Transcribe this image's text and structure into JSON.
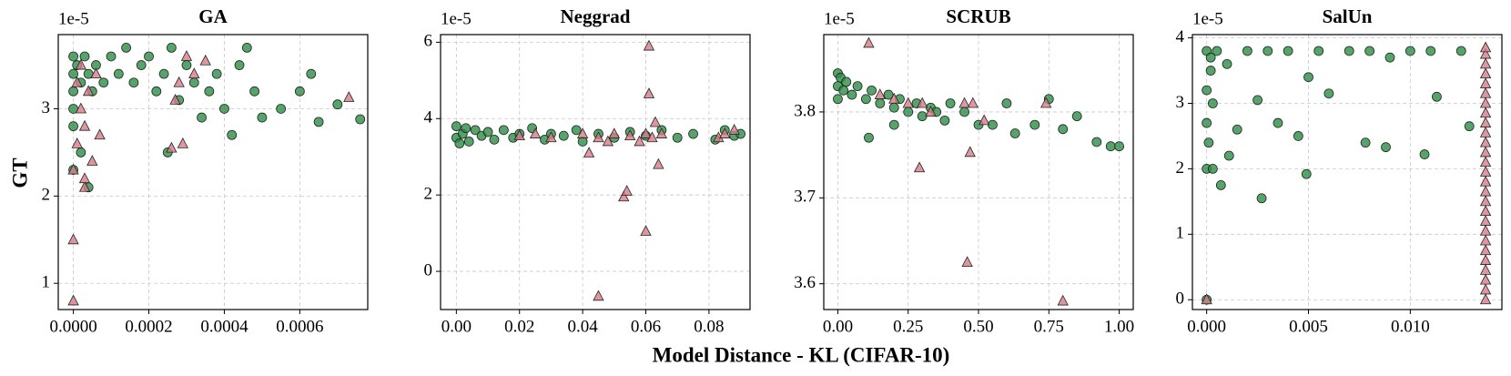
{
  "figure": {
    "xlabel": "Model Distance - KL (CIFAR-10)",
    "ylabel": "GT"
  },
  "chart_data": [
    {
      "type": "scatter",
      "title": "GA",
      "offset_text": "1e-5",
      "grid": true,
      "xlim": [
        -4e-05,
        0.00078
      ],
      "ylim": [
        0.7,
        3.85
      ],
      "xticks": [
        {
          "value": 0,
          "label": "0.0000"
        },
        {
          "value": 0.0002,
          "label": "0.0002"
        },
        {
          "value": 0.0004,
          "label": "0.0004"
        },
        {
          "value": 0.0006,
          "label": "0.0006"
        }
      ],
      "yticks": [
        1,
        2,
        3
      ],
      "series": [
        {
          "color": "#2e8b46",
          "marker": "circle",
          "x": [
            0,
            0,
            0,
            0,
            0,
            1e-05,
            2e-05,
            3e-05,
            4e-05,
            5e-05,
            6e-05,
            8e-05,
            0.0001,
            0.00012,
            0.00014,
            0.00016,
            0.00018,
            0.0002,
            0.00022,
            0.00024,
            0.00026,
            0.00025,
            0.00028,
            0.0003,
            0.00032,
            0.00034,
            0.00036,
            0.00038,
            0.0004,
            0.00042,
            0.00044,
            0.00046,
            0.00048,
            0.0005,
            0.00055,
            0.0006,
            0.00063,
            0.00065,
            0.0007,
            0.00076,
            0,
            2e-05,
            4e-05
          ],
          "values": [
            3.6,
            3.4,
            3.2,
            3.0,
            2.8,
            3.5,
            3.3,
            3.6,
            3.4,
            3.2,
            3.5,
            3.3,
            3.6,
            3.4,
            3.7,
            3.3,
            3.5,
            3.6,
            3.2,
            3.4,
            3.7,
            2.5,
            3.1,
            3.5,
            3.3,
            2.9,
            3.2,
            3.4,
            3.0,
            2.7,
            3.5,
            3.7,
            3.2,
            2.9,
            3.0,
            3.2,
            3.4,
            2.85,
            3.05,
            2.88,
            2.3,
            2.5,
            2.1
          ]
        },
        {
          "color": "#d9798a",
          "marker": "triangle",
          "x": [
            0,
            0,
            0,
            1e-05,
            2e-05,
            3e-05,
            4e-05,
            5e-05,
            6e-05,
            7e-05,
            3e-05,
            2e-05,
            0.00026,
            0.00028,
            0.0003,
            0.00029,
            0.00032,
            0.00027,
            0.00035,
            0.00073,
            3e-05,
            1e-05
          ],
          "values": [
            0.8,
            1.5,
            2.3,
            2.6,
            3.0,
            2.8,
            3.2,
            2.4,
            3.4,
            2.7,
            2.1,
            3.5,
            2.55,
            3.3,
            3.6,
            2.6,
            3.4,
            3.1,
            3.55,
            3.13,
            2.2,
            3.3
          ]
        }
      ]
    },
    {
      "type": "scatter",
      "title": "Neggrad",
      "offset_text": "1e-5",
      "grid": true,
      "xlim": [
        -0.005,
        0.093
      ],
      "ylim": [
        -1,
        6.2
      ],
      "xticks": [
        {
          "value": 0,
          "label": "0.00"
        },
        {
          "value": 0.02,
          "label": "0.02"
        },
        {
          "value": 0.04,
          "label": "0.04"
        },
        {
          "value": 0.06,
          "label": "0.06"
        },
        {
          "value": 0.08,
          "label": "0.08"
        }
      ],
      "yticks": [
        0,
        2,
        4,
        6
      ],
      "series": [
        {
          "color": "#2e8b46",
          "marker": "circle",
          "x": [
            0,
            0,
            0.002,
            0.004,
            0.006,
            0.008,
            0.01,
            0.012,
            0.015,
            0.018,
            0.02,
            0.024,
            0.028,
            0.03,
            0.034,
            0.038,
            0.04,
            0.045,
            0.05,
            0.055,
            0.06,
            0.065,
            0.07,
            0.075,
            0.082,
            0.085,
            0.088,
            0.09,
            0.001,
            0.003
          ],
          "values": [
            3.5,
            3.8,
            3.6,
            3.4,
            3.7,
            3.55,
            3.65,
            3.45,
            3.7,
            3.5,
            3.6,
            3.75,
            3.45,
            3.6,
            3.55,
            3.7,
            3.4,
            3.6,
            3.5,
            3.65,
            3.55,
            3.7,
            3.5,
            3.6,
            3.45,
            3.7,
            3.55,
            3.6,
            3.35,
            3.75
          ]
        },
        {
          "color": "#d9798a",
          "marker": "triangle",
          "x": [
            0.02,
            0.025,
            0.03,
            0.04,
            0.042,
            0.045,
            0.048,
            0.05,
            0.053,
            0.054,
            0.055,
            0.058,
            0.06,
            0.06,
            0.061,
            0.061,
            0.062,
            0.063,
            0.064,
            0.065,
            0.083,
            0.085,
            0.088,
            0.045
          ],
          "values": [
            3.55,
            3.6,
            3.5,
            3.6,
            3.1,
            3.5,
            3.4,
            3.6,
            1.95,
            2.1,
            3.55,
            3.4,
            1.05,
            3.6,
            5.9,
            4.65,
            3.5,
            3.9,
            2.8,
            3.6,
            3.5,
            3.6,
            3.7,
            -0.65
          ]
        }
      ]
    },
    {
      "type": "scatter",
      "title": "SCRUB",
      "offset_text": "1e-5",
      "grid": true,
      "xlim": [
        -0.05,
        1.05
      ],
      "ylim": [
        3.57,
        3.89
      ],
      "xticks": [
        {
          "value": 0,
          "label": "0.00"
        },
        {
          "value": 0.25,
          "label": "0.25"
        },
        {
          "value": 0.5,
          "label": "0.50"
        },
        {
          "value": 0.75,
          "label": "0.75"
        },
        {
          "value": 1,
          "label": "1.00"
        }
      ],
      "yticks": [
        3.6,
        3.7,
        3.8
      ],
      "series": [
        {
          "color": "#2e8b46",
          "marker": "circle",
          "x": [
            0,
            0,
            0,
            0.01,
            0.02,
            0.03,
            0.05,
            0.07,
            0.1,
            0.12,
            0.15,
            0.18,
            0.2,
            0.22,
            0.25,
            0.28,
            0.3,
            0.33,
            0.35,
            0.38,
            0.4,
            0.45,
            0.5,
            0.55,
            0.6,
            0.63,
            0.7,
            0.75,
            0.8,
            0.85,
            0.92,
            0.97,
            1.0,
            0.11,
            0.2
          ],
          "values": [
            3.845,
            3.83,
            3.815,
            3.84,
            3.825,
            3.835,
            3.82,
            3.83,
            3.815,
            3.825,
            3.81,
            3.82,
            3.805,
            3.815,
            3.8,
            3.81,
            3.795,
            3.805,
            3.8,
            3.79,
            3.81,
            3.8,
            3.785,
            3.785,
            3.81,
            3.775,
            3.785,
            3.815,
            3.78,
            3.795,
            3.765,
            3.76,
            3.76,
            3.77,
            3.785
          ]
        },
        {
          "color": "#d9798a",
          "marker": "triangle",
          "x": [
            0.11,
            0.2,
            0.25,
            0.29,
            0.3,
            0.33,
            0.45,
            0.46,
            0.47,
            0.48,
            0.52,
            0.74,
            0.8,
            0.15
          ],
          "values": [
            3.88,
            3.815,
            3.81,
            3.735,
            3.81,
            3.8,
            3.81,
            3.625,
            3.753,
            3.81,
            3.79,
            3.81,
            3.58,
            3.82
          ]
        }
      ]
    },
    {
      "type": "scatter",
      "title": "SalUn",
      "offset_text": "1e-5",
      "grid": true,
      "xlim": [
        -0.0007,
        0.0145
      ],
      "ylim": [
        -0.15,
        4.05
      ],
      "xticks": [
        {
          "value": 0,
          "label": "0.000"
        },
        {
          "value": 0.005,
          "label": "0.005"
        },
        {
          "value": 0.01,
          "label": "0.010"
        }
      ],
      "yticks": [
        0,
        1,
        2,
        3,
        4
      ],
      "series": [
        {
          "color": "#2e8b46",
          "marker": "circle",
          "x": [
            0,
            0,
            0,
            0,
            0,
            0.0002,
            0.0003,
            0.0005,
            0.0007,
            0.001,
            0.0011,
            0.0015,
            0.002,
            0.0025,
            0.0027,
            0.003,
            0.0035,
            0.004,
            0.0045,
            0.0049,
            0.005,
            0.0055,
            0.006,
            0.007,
            0.0078,
            0.008,
            0.0088,
            0.009,
            0.01,
            0.0107,
            0.011,
            0.0113,
            0.0125,
            0.0129,
            0.0003,
            0.0001,
            0.0002
          ],
          "values": [
            0,
            2.0,
            2.7,
            3.2,
            3.8,
            3.5,
            2.0,
            3.8,
            1.75,
            3.6,
            2.2,
            2.6,
            3.8,
            3.05,
            1.55,
            3.8,
            2.7,
            3.8,
            2.5,
            1.92,
            3.4,
            3.8,
            3.15,
            3.8,
            2.4,
            3.8,
            2.33,
            3.7,
            3.8,
            2.22,
            3.8,
            3.1,
            3.8,
            2.65,
            3.0,
            2.4,
            3.7
          ]
        },
        {
          "color": "#d9798a",
          "marker": "triangle",
          "x": [
            0.0137,
            0.0137,
            0.0137,
            0.0137,
            0.0137,
            0.0137,
            0.0137,
            0.0137,
            0.0137,
            0.0137,
            0.0137,
            0.0137,
            0.0137,
            0.0137,
            0.0137,
            0.0137,
            0.0137,
            0.0137,
            0.0137,
            0.0137,
            0.0137,
            0.0137,
            0.0137,
            0.0137,
            0.0137,
            0.0137,
            0.0137,
            0
          ],
          "values": [
            0,
            0.15,
            0.3,
            0.45,
            0.6,
            0.75,
            0.9,
            1.05,
            1.2,
            1.35,
            1.5,
            1.65,
            1.8,
            1.95,
            2.1,
            2.25,
            2.4,
            2.55,
            2.7,
            2.85,
            3.0,
            3.15,
            3.3,
            3.45,
            3.6,
            3.75,
            3.85,
            0
          ]
        }
      ]
    }
  ]
}
